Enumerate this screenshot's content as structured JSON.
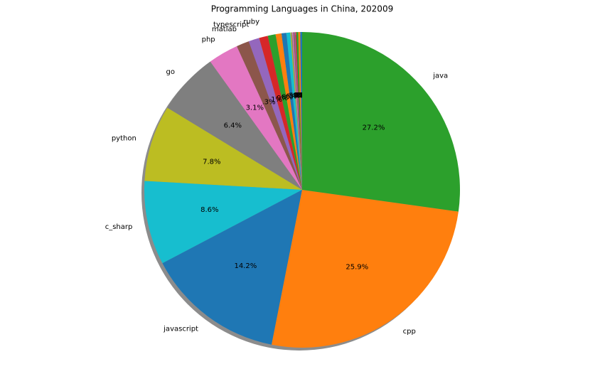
{
  "chart_data": {
    "type": "pie",
    "title": "Programming Languages in China, 202009",
    "categories": [
      null,
      null,
      null,
      null,
      null,
      null,
      null,
      null,
      null,
      null,
      null,
      null,
      null,
      "ruby",
      "typescript",
      "matlab",
      "php",
      "go",
      "python",
      "c_sharp",
      "javascript",
      "cpp",
      "java"
    ],
    "values": [
      0.2,
      0.2,
      0.2,
      0.1,
      0.1,
      0.1,
      0.1,
      0.1,
      0.1,
      0.4,
      0.5,
      0.6,
      0.8,
      0.9,
      1.1,
      1.3,
      3.1,
      6.4,
      7.8,
      8.6,
      14.2,
      25.9,
      27.2
    ],
    "value_labels": [
      "0.2%",
      "0.2%",
      "0.2%",
      "0.1%",
      "0.1%",
      "0.1%",
      "0.1%",
      "0.1%",
      "0.1%",
      "0.4%",
      "0.5%",
      "0.6%",
      "0.8%",
      "0.9%",
      "1.1%",
      "1.3%",
      "3.1%",
      "6.4%",
      "7.8%",
      "8.6%",
      "14.2%",
      "25.9%",
      "27.2%"
    ],
    "colors": [
      "#1f77b4",
      "#ff7f0e",
      "#2ca02c",
      "#d62728",
      "#9467bd",
      "#8c564b",
      "#e377c2",
      "#7f7f7f",
      "#bcbd22",
      "#17becf",
      "#1f77b4",
      "#ff7f0e",
      "#2ca02c",
      "#d62728",
      "#9467bd",
      "#8c564b",
      "#e377c2",
      "#7f7f7f",
      "#bcbd22",
      "#17becf",
      "#1f77b4",
      "#ff7f0e",
      "#2ca02c"
    ],
    "shadow": true
  }
}
